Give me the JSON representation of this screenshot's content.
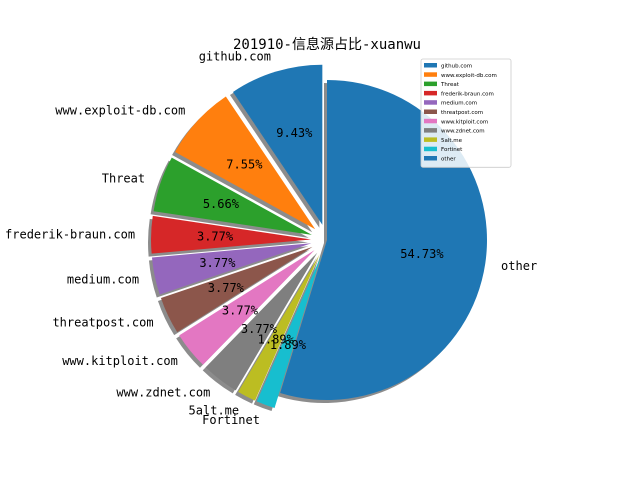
{
  "chart_data": {
    "type": "pie",
    "title": "201910-信息源占比-xuanwu",
    "start_angle_deg": 90,
    "direction": "counterclockwise",
    "shadow": true,
    "explode": true,
    "legend_placement": "top-right",
    "slices": [
      {
        "label": "github.com",
        "value": 9.43,
        "pct_label": "9.43%",
        "color": "#1f77b4"
      },
      {
        "label": "www.exploit-db.com",
        "value": 7.55,
        "pct_label": "7.55%",
        "color": "#ff7f0e"
      },
      {
        "label": "Threat",
        "value": 5.66,
        "pct_label": "5.66%",
        "color": "#2ca02c"
      },
      {
        "label": "frederik-braun.com",
        "value": 3.77,
        "pct_label": "3.77%",
        "color": "#d62728"
      },
      {
        "label": "medium.com",
        "value": 3.77,
        "pct_label": "3.77%",
        "color": "#9467bd"
      },
      {
        "label": "threatpost.com",
        "value": 3.77,
        "pct_label": "3.77%",
        "color": "#8c564b"
      },
      {
        "label": "www.kitploit.com",
        "value": 3.77,
        "pct_label": "3.77%",
        "color": "#e377c2"
      },
      {
        "label": "www.zdnet.com",
        "value": 3.77,
        "pct_label": "3.77%",
        "color": "#7f7f7f"
      },
      {
        "label": "5alt.me",
        "value": 1.89,
        "pct_label": "1.89%",
        "color": "#bcbd22"
      },
      {
        "label": "Fortinet",
        "value": 1.89,
        "pct_label": "1.89%",
        "color": "#17becf"
      },
      {
        "label": "other",
        "value": 54.73,
        "pct_label": "54.73%",
        "color": "#1f77b4"
      }
    ]
  }
}
